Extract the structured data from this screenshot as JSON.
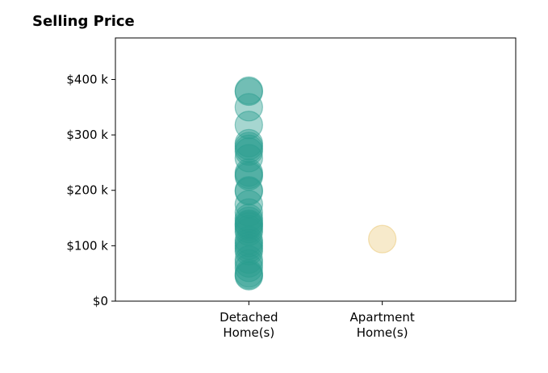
{
  "chart_data": {
    "type": "scatter",
    "title": "Selling Price",
    "categories": [
      "Detached Home(s)",
      "Apartment Home(s)"
    ],
    "category_label_lines": [
      [
        "Detached",
        "Home(s)"
      ],
      [
        "Apartment",
        "Home(s)"
      ]
    ],
    "y_ticks": [
      0,
      100000,
      200000,
      300000,
      400000
    ],
    "y_tick_labels": [
      "$0",
      "$100 k",
      "$200 k",
      "$300 k",
      "$400 k"
    ],
    "ylim": [
      0,
      475000
    ],
    "xlim": [
      -1,
      2
    ],
    "grid": false,
    "series": [
      {
        "category": "Detached Home(s)",
        "color": "#2a9d8f",
        "values": [
          380000,
          378000,
          350000,
          318000,
          285000,
          280000,
          275000,
          270000,
          258000,
          232000,
          228000,
          225000,
          200000,
          198000,
          175000,
          160000,
          150000,
          145000,
          140000,
          138000,
          135000,
          130000,
          125000,
          110000,
          105000,
          100000,
          95000,
          90000,
          75000,
          68000,
          60000,
          50000,
          47000,
          45000
        ]
      },
      {
        "category": "Apartment Home(s)",
        "color": "#e9c46a",
        "values": [
          112000
        ]
      }
    ]
  }
}
